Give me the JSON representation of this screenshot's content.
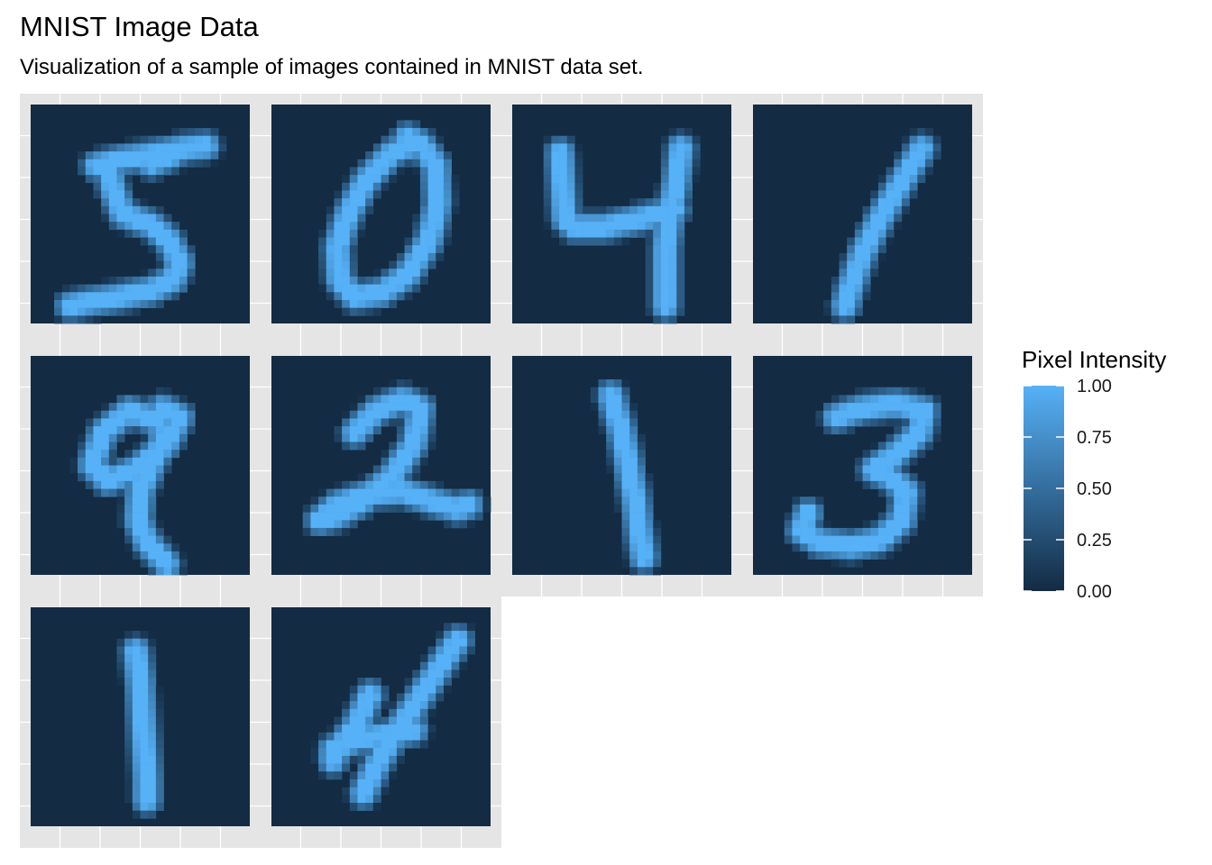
{
  "chart_data": {
    "type": "heatmap",
    "title": "MNIST Image Data",
    "subtitle": "Visualization of a sample of images contained in MNIST data set.",
    "legend": {
      "title": "Pixel Intensity",
      "placement": "right",
      "ticks": [
        "1.00",
        "0.75",
        "0.50",
        "0.25",
        "0.00"
      ],
      "range": [
        0,
        1
      ],
      "low_color": "#132B43",
      "high_color": "#56B1F7"
    },
    "layout": {
      "columns": 4,
      "rows": 3
    },
    "panel_background": "#E5E5E5",
    "grid_color": "#FFFFFF",
    "image_size": [
      28,
      28
    ],
    "images": [
      {
        "digit": "5",
        "strokes": [
          [
            [
              0.3,
              0.28
            ],
            [
              0.42,
              0.25
            ],
            [
              0.55,
              0.23
            ],
            [
              0.7,
              0.2
            ],
            [
              0.8,
              0.19
            ]
          ],
          [
            [
              0.35,
              0.28
            ],
            [
              0.38,
              0.4
            ],
            [
              0.42,
              0.5
            ],
            [
              0.55,
              0.55
            ],
            [
              0.63,
              0.62
            ],
            [
              0.68,
              0.72
            ],
            [
              0.65,
              0.8
            ],
            [
              0.55,
              0.85
            ],
            [
              0.4,
              0.88
            ],
            [
              0.28,
              0.9
            ],
            [
              0.18,
              0.92
            ]
          ],
          [
            [
              0.55,
              0.27
            ],
            [
              0.65,
              0.23
            ]
          ]
        ]
      },
      {
        "digit": "0",
        "strokes": [
          [
            [
              0.65,
              0.18
            ],
            [
              0.55,
              0.22
            ],
            [
              0.43,
              0.35
            ],
            [
              0.35,
              0.5
            ],
            [
              0.3,
              0.65
            ],
            [
              0.31,
              0.8
            ],
            [
              0.38,
              0.88
            ],
            [
              0.5,
              0.86
            ],
            [
              0.62,
              0.78
            ],
            [
              0.72,
              0.62
            ],
            [
              0.76,
              0.45
            ],
            [
              0.75,
              0.28
            ],
            [
              0.68,
              0.18
            ],
            [
              0.62,
              0.15
            ]
          ]
        ]
      },
      {
        "digit": "4",
        "strokes": [
          [
            [
              0.22,
              0.22
            ],
            [
              0.23,
              0.38
            ],
            [
              0.24,
              0.52
            ],
            [
              0.28,
              0.56
            ],
            [
              0.42,
              0.56
            ],
            [
              0.55,
              0.53
            ],
            [
              0.68,
              0.5
            ],
            [
              0.74,
              0.48
            ]
          ],
          [
            [
              0.77,
              0.2
            ],
            [
              0.75,
              0.35
            ],
            [
              0.72,
              0.5
            ],
            [
              0.7,
              0.65
            ],
            [
              0.7,
              0.8
            ],
            [
              0.7,
              0.92
            ]
          ]
        ]
      },
      {
        "digit": "1",
        "strokes": [
          [
            [
              0.77,
              0.2
            ],
            [
              0.68,
              0.35
            ],
            [
              0.58,
              0.52
            ],
            [
              0.5,
              0.68
            ],
            [
              0.45,
              0.82
            ],
            [
              0.42,
              0.92
            ]
          ]
        ]
      },
      {
        "digit": "9",
        "strokes": [
          [
            [
              0.58,
              0.3
            ],
            [
              0.45,
              0.25
            ],
            [
              0.33,
              0.35
            ],
            [
              0.28,
              0.5
            ],
            [
              0.35,
              0.57
            ],
            [
              0.48,
              0.52
            ],
            [
              0.62,
              0.4
            ],
            [
              0.68,
              0.28
            ],
            [
              0.6,
              0.24
            ]
          ],
          [
            [
              0.62,
              0.35
            ],
            [
              0.55,
              0.5
            ],
            [
              0.5,
              0.62
            ],
            [
              0.49,
              0.75
            ],
            [
              0.53,
              0.85
            ],
            [
              0.62,
              0.95
            ]
          ]
        ]
      },
      {
        "digit": "2",
        "strokes": [
          [
            [
              0.38,
              0.35
            ],
            [
              0.48,
              0.25
            ],
            [
              0.6,
              0.2
            ],
            [
              0.68,
              0.24
            ],
            [
              0.65,
              0.4
            ],
            [
              0.55,
              0.55
            ],
            [
              0.42,
              0.66
            ],
            [
              0.3,
              0.73
            ],
            [
              0.22,
              0.75
            ],
            [
              0.3,
              0.68
            ],
            [
              0.45,
              0.63
            ],
            [
              0.6,
              0.62
            ],
            [
              0.72,
              0.66
            ],
            [
              0.85,
              0.7
            ],
            [
              0.9,
              0.68
            ]
          ]
        ]
      },
      {
        "digit": "1",
        "strokes": [
          [
            [
              0.45,
              0.18
            ],
            [
              0.5,
              0.35
            ],
            [
              0.53,
              0.5
            ],
            [
              0.56,
              0.65
            ],
            [
              0.58,
              0.8
            ],
            [
              0.6,
              0.92
            ]
          ]
        ]
      },
      {
        "digit": "3",
        "strokes": [
          [
            [
              0.38,
              0.28
            ],
            [
              0.5,
              0.24
            ],
            [
              0.65,
              0.22
            ],
            [
              0.78,
              0.25
            ],
            [
              0.76,
              0.35
            ],
            [
              0.65,
              0.45
            ],
            [
              0.55,
              0.52
            ],
            [
              0.62,
              0.55
            ],
            [
              0.7,
              0.62
            ],
            [
              0.68,
              0.75
            ],
            [
              0.58,
              0.84
            ],
            [
              0.45,
              0.87
            ],
            [
              0.3,
              0.85
            ],
            [
              0.22,
              0.8
            ],
            [
              0.25,
              0.72
            ]
          ]
        ]
      },
      {
        "digit": "1",
        "strokes": [
          [
            [
              0.48,
              0.2
            ],
            [
              0.5,
              0.35
            ],
            [
              0.51,
              0.5
            ],
            [
              0.52,
              0.65
            ],
            [
              0.53,
              0.78
            ],
            [
              0.53,
              0.88
            ]
          ]
        ]
      },
      {
        "digit": "4",
        "strokes": [
          [
            [
              0.85,
              0.15
            ],
            [
              0.75,
              0.3
            ],
            [
              0.65,
              0.45
            ],
            [
              0.55,
              0.6
            ],
            [
              0.48,
              0.72
            ],
            [
              0.42,
              0.85
            ]
          ],
          [
            [
              0.45,
              0.4
            ],
            [
              0.38,
              0.55
            ],
            [
              0.3,
              0.65
            ],
            [
              0.28,
              0.7
            ]
          ],
          [
            [
              0.28,
              0.65
            ],
            [
              0.4,
              0.6
            ],
            [
              0.55,
              0.58
            ],
            [
              0.65,
              0.56
            ]
          ]
        ]
      }
    ]
  }
}
